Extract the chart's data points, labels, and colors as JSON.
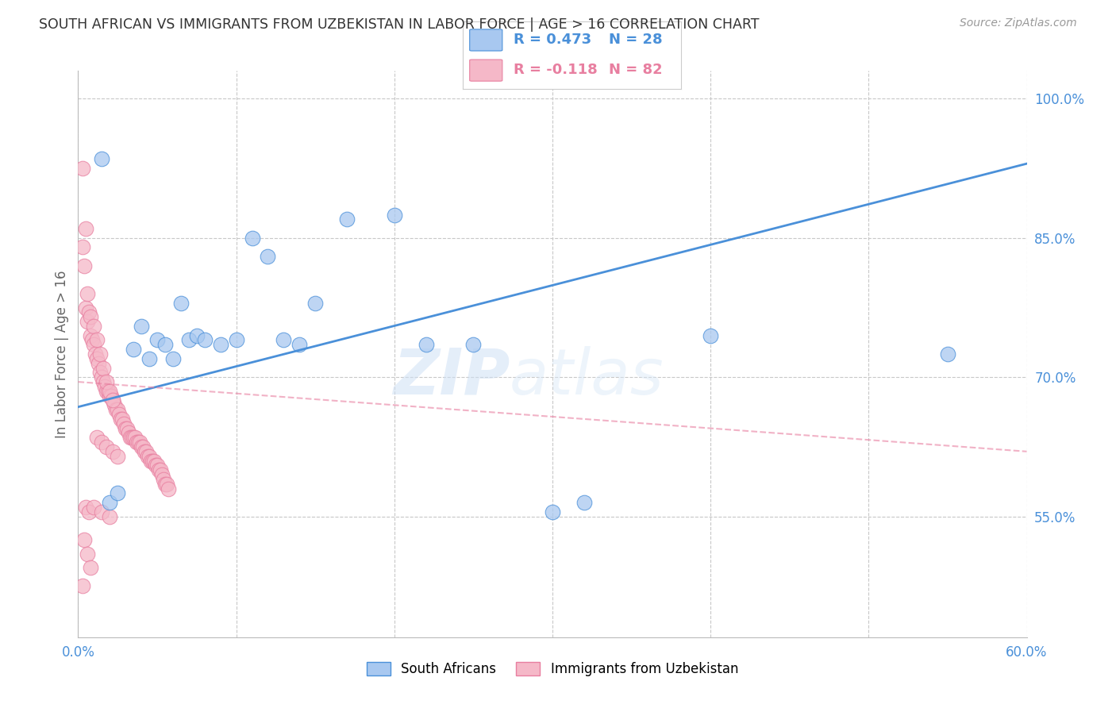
{
  "title": "SOUTH AFRICAN VS IMMIGRANTS FROM UZBEKISTAN IN LABOR FORCE | AGE > 16 CORRELATION CHART",
  "source": "Source: ZipAtlas.com",
  "ylabel": "In Labor Force | Age > 16",
  "watermark_zip": "ZIP",
  "watermark_atlas": "atlas",
  "xlim": [
    0.0,
    60.0
  ],
  "ylim": [
    42.0,
    103.0
  ],
  "xtick_positions": [
    0.0,
    10.0,
    20.0,
    30.0,
    40.0,
    50.0,
    60.0
  ],
  "xtick_labels": [
    "0.0%",
    "",
    "",
    "",
    "",
    "",
    "60.0%"
  ],
  "yticks_right": [
    55.0,
    70.0,
    85.0,
    100.0
  ],
  "ytick_labels_right": [
    "55.0%",
    "70.0%",
    "85.0%",
    "100.0%"
  ],
  "blue_color": "#a8c8f0",
  "pink_color": "#f5b8c8",
  "trend_blue": "#4a90d9",
  "trend_pink": "#e87fa0",
  "grid_color": "#c8c8c8",
  "axis_color": "#4a90d9",
  "legend_r_blue": "R = 0.473",
  "legend_n_blue": "N = 28",
  "legend_r_pink": "R = -0.118",
  "legend_n_pink": "N = 82",
  "blue_scatter": [
    [
      1.5,
      93.5
    ],
    [
      2.0,
      56.5
    ],
    [
      2.5,
      57.5
    ],
    [
      3.5,
      73.0
    ],
    [
      4.0,
      75.5
    ],
    [
      4.5,
      72.0
    ],
    [
      5.0,
      74.0
    ],
    [
      5.5,
      73.5
    ],
    [
      6.0,
      72.0
    ],
    [
      6.5,
      78.0
    ],
    [
      7.0,
      74.0
    ],
    [
      7.5,
      74.5
    ],
    [
      8.0,
      74.0
    ],
    [
      9.0,
      73.5
    ],
    [
      10.0,
      74.0
    ],
    [
      11.0,
      85.0
    ],
    [
      12.0,
      83.0
    ],
    [
      13.0,
      74.0
    ],
    [
      14.0,
      73.5
    ],
    [
      15.0,
      78.0
    ],
    [
      17.0,
      87.0
    ],
    [
      20.0,
      87.5
    ],
    [
      22.0,
      73.5
    ],
    [
      25.0,
      73.5
    ],
    [
      30.0,
      55.5
    ],
    [
      32.0,
      56.5
    ],
    [
      40.0,
      74.5
    ],
    [
      55.0,
      72.5
    ]
  ],
  "pink_scatter": [
    [
      0.3,
      84.0
    ],
    [
      0.5,
      77.5
    ],
    [
      0.6,
      76.0
    ],
    [
      0.7,
      77.0
    ],
    [
      0.8,
      74.5
    ],
    [
      0.9,
      74.0
    ],
    [
      1.0,
      73.5
    ],
    [
      1.1,
      72.5
    ],
    [
      1.2,
      72.0
    ],
    [
      1.3,
      71.5
    ],
    [
      1.4,
      70.5
    ],
    [
      1.5,
      70.0
    ],
    [
      1.6,
      69.5
    ],
    [
      1.7,
      69.0
    ],
    [
      1.8,
      68.5
    ],
    [
      1.9,
      68.5
    ],
    [
      2.0,
      68.0
    ],
    [
      2.1,
      68.0
    ],
    [
      2.2,
      67.5
    ],
    [
      2.3,
      67.0
    ],
    [
      2.4,
      66.5
    ],
    [
      2.5,
      66.5
    ],
    [
      2.6,
      66.0
    ],
    [
      2.7,
      65.5
    ],
    [
      2.8,
      65.5
    ],
    [
      2.9,
      65.0
    ],
    [
      3.0,
      64.5
    ],
    [
      3.1,
      64.5
    ],
    [
      3.2,
      64.0
    ],
    [
      3.3,
      63.5
    ],
    [
      3.4,
      63.5
    ],
    [
      3.5,
      63.5
    ],
    [
      3.6,
      63.5
    ],
    [
      3.7,
      63.0
    ],
    [
      3.8,
      63.0
    ],
    [
      3.9,
      63.0
    ],
    [
      4.0,
      62.5
    ],
    [
      4.1,
      62.5
    ],
    [
      4.2,
      62.0
    ],
    [
      4.3,
      62.0
    ],
    [
      4.4,
      61.5
    ],
    [
      4.5,
      61.5
    ],
    [
      4.6,
      61.0
    ],
    [
      4.7,
      61.0
    ],
    [
      4.8,
      61.0
    ],
    [
      4.9,
      60.5
    ],
    [
      5.0,
      60.5
    ],
    [
      5.1,
      60.0
    ],
    [
      5.2,
      60.0
    ],
    [
      5.3,
      59.5
    ],
    [
      5.4,
      59.0
    ],
    [
      5.5,
      58.5
    ],
    [
      5.6,
      58.5
    ],
    [
      5.7,
      58.0
    ],
    [
      0.3,
      92.5
    ],
    [
      0.5,
      86.0
    ],
    [
      0.4,
      82.0
    ],
    [
      0.6,
      79.0
    ],
    [
      0.8,
      76.5
    ],
    [
      1.0,
      75.5
    ],
    [
      1.2,
      74.0
    ],
    [
      1.4,
      72.5
    ],
    [
      1.6,
      71.0
    ],
    [
      1.8,
      69.5
    ],
    [
      2.0,
      68.5
    ],
    [
      2.2,
      67.5
    ],
    [
      0.5,
      56.0
    ],
    [
      0.7,
      55.5
    ],
    [
      1.0,
      56.0
    ],
    [
      1.5,
      55.5
    ],
    [
      2.0,
      55.0
    ],
    [
      0.4,
      52.5
    ],
    [
      0.6,
      51.0
    ],
    [
      0.8,
      49.5
    ],
    [
      0.3,
      47.5
    ],
    [
      1.2,
      63.5
    ],
    [
      1.5,
      63.0
    ],
    [
      1.8,
      62.5
    ],
    [
      2.2,
      62.0
    ],
    [
      2.5,
      61.5
    ]
  ],
  "blue_trendline": [
    [
      0.0,
      66.8
    ],
    [
      60.0,
      93.0
    ]
  ],
  "pink_trendline": [
    [
      0.0,
      69.5
    ],
    [
      60.0,
      62.0
    ]
  ],
  "background_color": "#ffffff"
}
